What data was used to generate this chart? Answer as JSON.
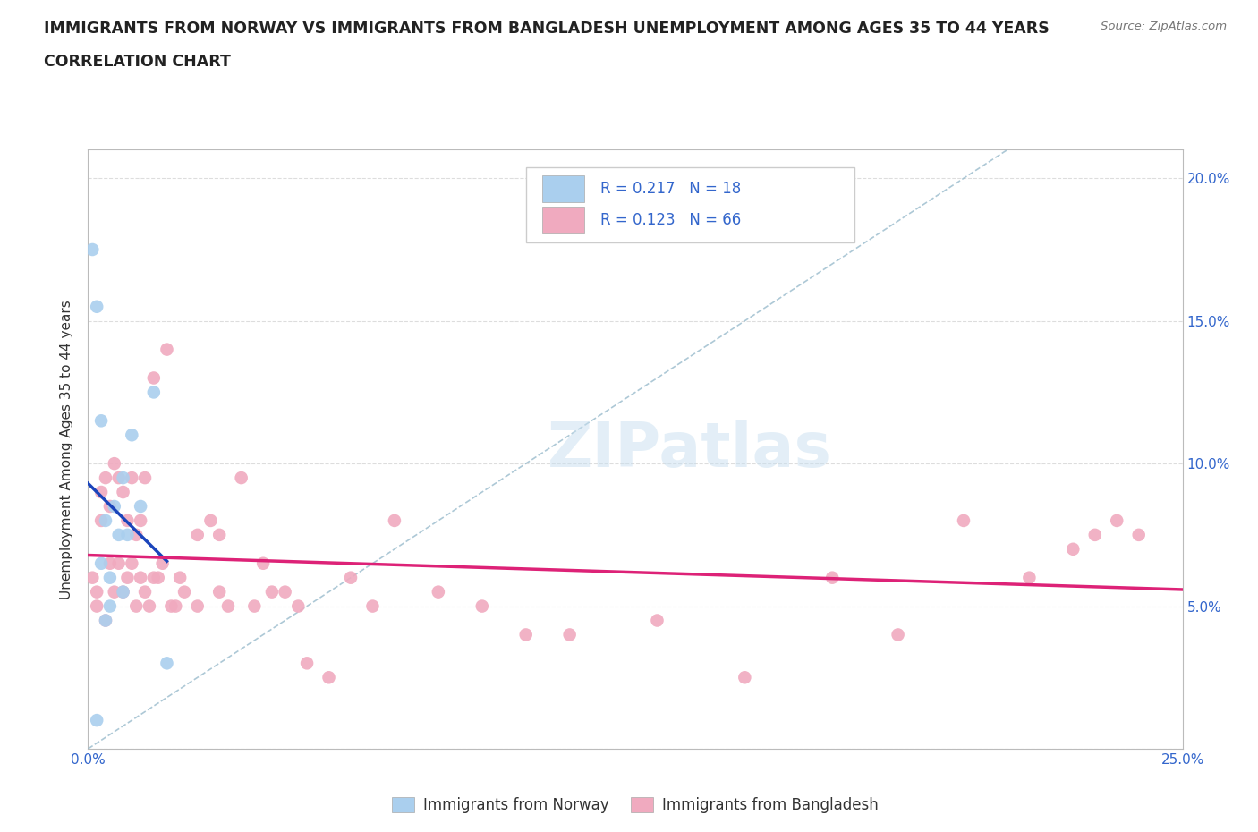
{
  "title_line1": "IMMIGRANTS FROM NORWAY VS IMMIGRANTS FROM BANGLADESH UNEMPLOYMENT AMONG AGES 35 TO 44 YEARS",
  "title_line2": "CORRELATION CHART",
  "source": "Source: ZipAtlas.com",
  "ylabel": "Unemployment Among Ages 35 to 44 years",
  "xlim": [
    0.0,
    0.25
  ],
  "ylim": [
    0.0,
    0.21
  ],
  "norway_color": "#aacfee",
  "bangladesh_color": "#f0aabf",
  "norway_R": 0.217,
  "norway_N": 18,
  "bangladesh_R": 0.123,
  "bangladesh_N": 66,
  "norway_trend_color": "#1a44bb",
  "bangladesh_trend_color": "#dd2277",
  "diagonal_color": "#99bbcc",
  "tick_color": "#3366cc",
  "legend_label_norway": "Immigrants from Norway",
  "legend_label_bangladesh": "Immigrants from Bangladesh",
  "norway_x": [
    0.001,
    0.002,
    0.002,
    0.003,
    0.003,
    0.004,
    0.004,
    0.005,
    0.005,
    0.006,
    0.007,
    0.008,
    0.008,
    0.009,
    0.01,
    0.012,
    0.015,
    0.018
  ],
  "norway_y": [
    0.175,
    0.155,
    0.01,
    0.115,
    0.065,
    0.045,
    0.08,
    0.05,
    0.06,
    0.085,
    0.075,
    0.055,
    0.095,
    0.075,
    0.11,
    0.085,
    0.125,
    0.03
  ],
  "bangladesh_x": [
    0.001,
    0.002,
    0.002,
    0.003,
    0.003,
    0.004,
    0.004,
    0.005,
    0.005,
    0.006,
    0.006,
    0.007,
    0.007,
    0.008,
    0.008,
    0.009,
    0.009,
    0.01,
    0.01,
    0.011,
    0.011,
    0.012,
    0.012,
    0.013,
    0.013,
    0.014,
    0.015,
    0.015,
    0.016,
    0.017,
    0.018,
    0.019,
    0.02,
    0.021,
    0.022,
    0.025,
    0.025,
    0.028,
    0.03,
    0.03,
    0.032,
    0.035,
    0.038,
    0.04,
    0.042,
    0.045,
    0.048,
    0.05,
    0.055,
    0.06,
    0.065,
    0.07,
    0.08,
    0.09,
    0.1,
    0.11,
    0.13,
    0.15,
    0.17,
    0.185,
    0.2,
    0.215,
    0.225,
    0.23,
    0.235,
    0.24
  ],
  "bangladesh_y": [
    0.06,
    0.055,
    0.05,
    0.09,
    0.08,
    0.095,
    0.045,
    0.085,
    0.065,
    0.1,
    0.055,
    0.095,
    0.065,
    0.09,
    0.055,
    0.08,
    0.06,
    0.095,
    0.065,
    0.075,
    0.05,
    0.08,
    0.06,
    0.095,
    0.055,
    0.05,
    0.13,
    0.06,
    0.06,
    0.065,
    0.14,
    0.05,
    0.05,
    0.06,
    0.055,
    0.075,
    0.05,
    0.08,
    0.055,
    0.075,
    0.05,
    0.095,
    0.05,
    0.065,
    0.055,
    0.055,
    0.05,
    0.03,
    0.025,
    0.06,
    0.05,
    0.08,
    0.055,
    0.05,
    0.04,
    0.04,
    0.045,
    0.025,
    0.06,
    0.04,
    0.08,
    0.06,
    0.07,
    0.075,
    0.08,
    0.075
  ]
}
